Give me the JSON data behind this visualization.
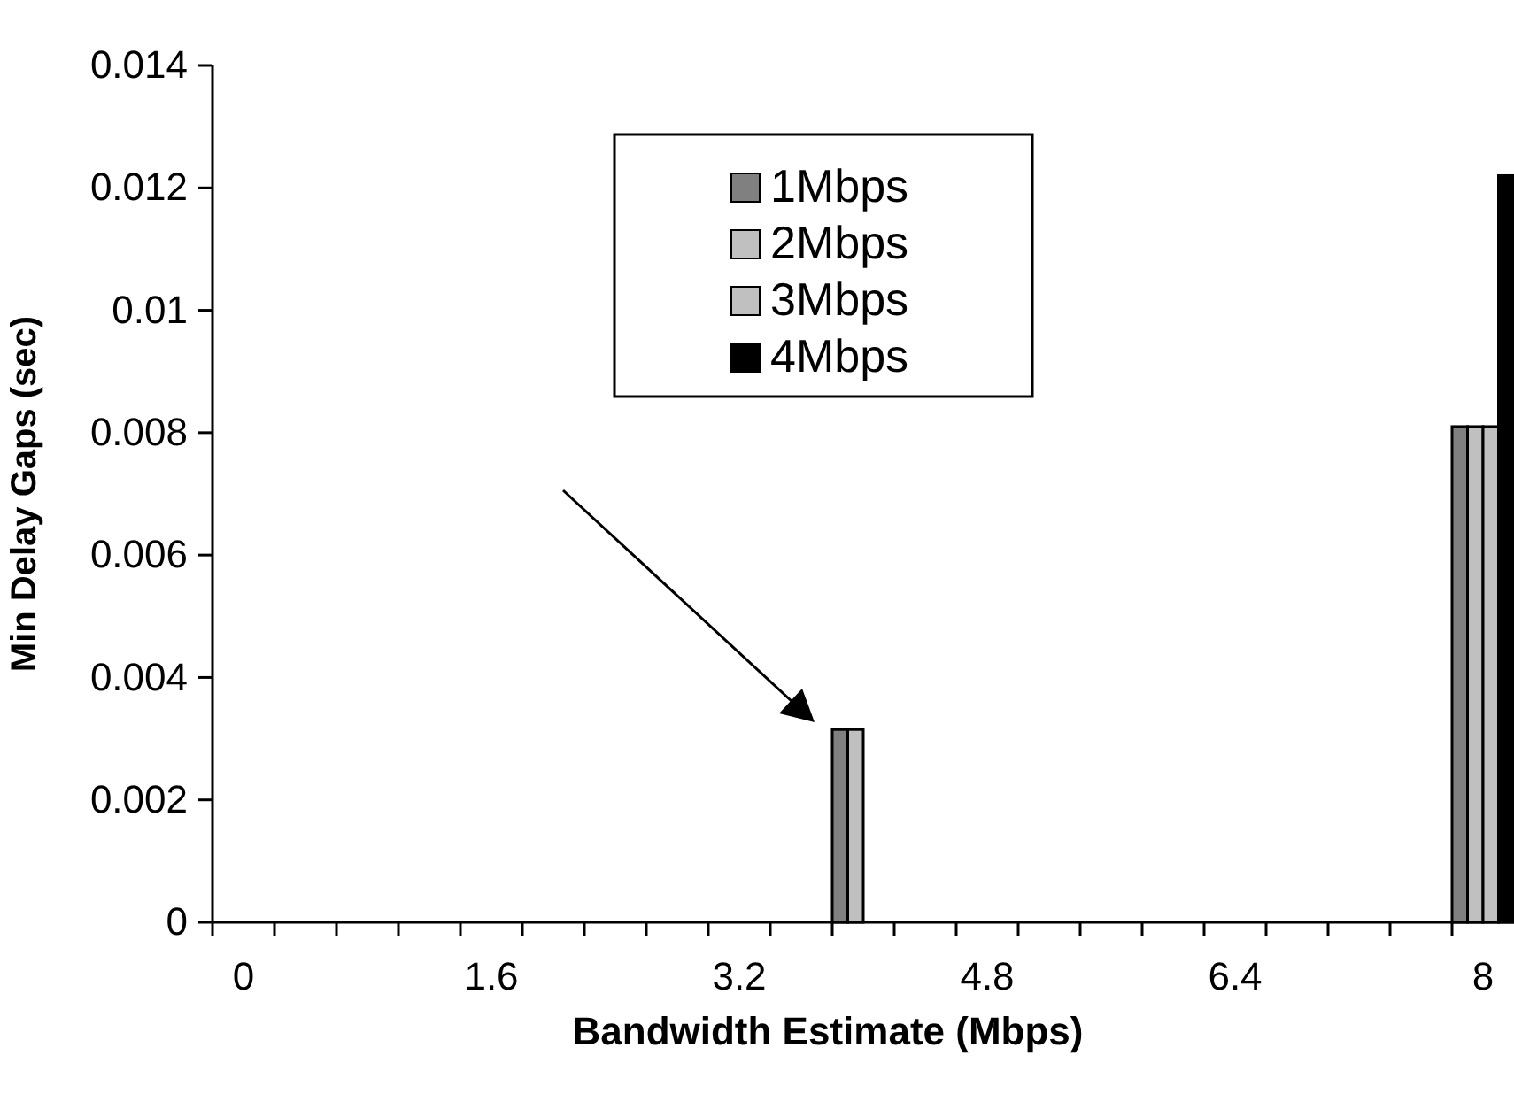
{
  "chart_data": {
    "type": "bar",
    "xlabel": "Bandwidth Estimate (Mbps)",
    "ylabel": "Min Delay Gaps (sec)",
    "categories": [
      "0",
      null,
      null,
      null,
      "1.6",
      null,
      null,
      null,
      "3.2",
      null,
      null,
      null,
      "4.8",
      null,
      null,
      null,
      "6.4",
      null,
      null,
      null,
      "8"
    ],
    "series": [
      {
        "name": "1Mbps",
        "color": "#808080",
        "values": [
          0,
          0,
          0,
          0,
          0,
          0,
          0,
          0,
          0,
          0,
          0.00315,
          0,
          0,
          0,
          0,
          0,
          0,
          0,
          0,
          0,
          0.0081
        ]
      },
      {
        "name": "2Mbps",
        "color": "#c0c0c0",
        "values": [
          0,
          0,
          0,
          0,
          0,
          0,
          0,
          0,
          0,
          0,
          0.00315,
          0,
          0,
          0,
          0,
          0,
          0,
          0,
          0,
          0,
          0.0081
        ]
      },
      {
        "name": "3Mbps",
        "color": "#c0c0c0",
        "values": [
          0,
          0,
          0,
          0,
          0,
          0,
          0,
          0,
          0,
          0,
          0,
          0,
          0,
          0,
          0,
          0,
          0,
          0,
          0,
          0,
          0.0081
        ]
      },
      {
        "name": "4Mbps",
        "color": "#000000",
        "values": [
          0,
          0,
          0,
          0,
          0,
          0,
          0,
          0,
          0,
          0,
          0,
          0,
          0,
          0,
          0,
          0,
          0,
          0,
          0,
          0,
          0.0122
        ]
      }
    ],
    "ylim": [
      0,
      0.014
    ],
    "yticks": [
      0,
      0.002,
      0.004,
      0.006,
      0.008,
      0.01,
      0.012,
      0.014
    ],
    "grid": false,
    "legend": "top"
  }
}
